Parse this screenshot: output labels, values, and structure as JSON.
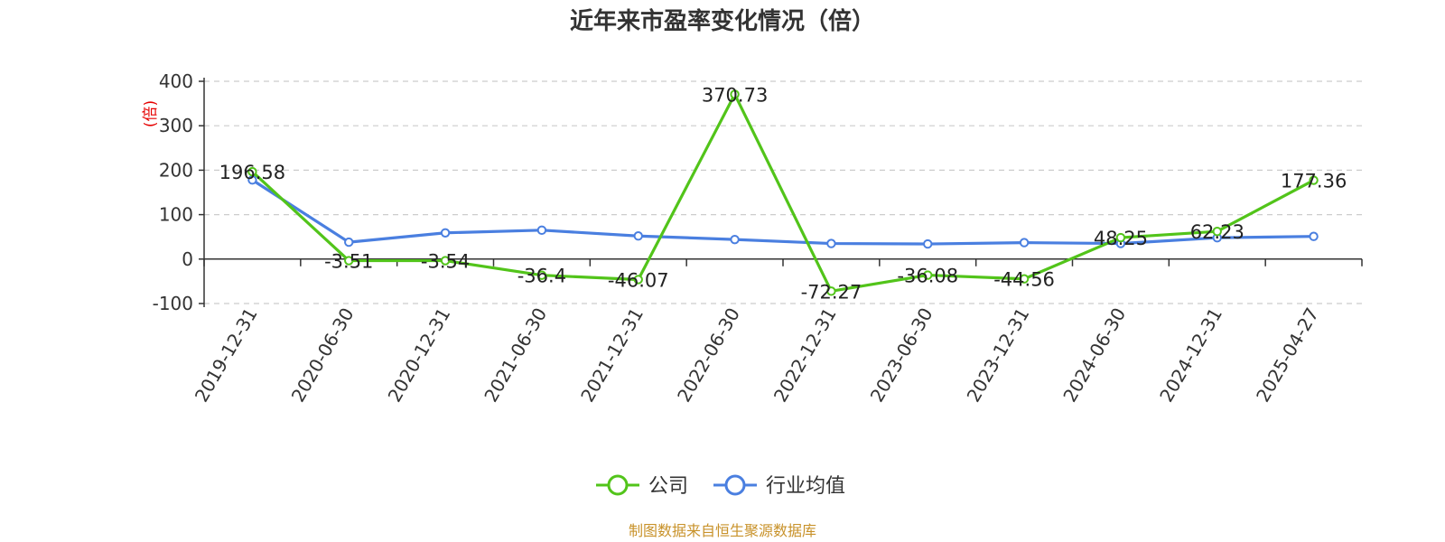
{
  "colors": {
    "company": "#52c41a",
    "industry": "#4a7fe0",
    "unit": "#e60000",
    "source": "#c8922a",
    "grid": "#cccccc",
    "axis": "#333333"
  },
  "chart_data": {
    "type": "line",
    "title": "近年来市盈率变化情况（倍）",
    "ylabel": "(倍)",
    "xlabel": "",
    "categories": [
      "2019-12-31",
      "2020-06-30",
      "2020-12-31",
      "2021-06-30",
      "2021-12-31",
      "2022-06-30",
      "2022-12-31",
      "2023-06-30",
      "2023-12-31",
      "2024-06-30",
      "2024-12-31",
      "2025-04-27"
    ],
    "ylim": [
      -100,
      400
    ],
    "yticks": [
      400,
      300,
      200,
      100,
      0,
      -100
    ],
    "grid": true,
    "legend_position": "bottom",
    "series": [
      {
        "name": "公司",
        "values": [
          196.58,
          -3.51,
          -3.54,
          -36.4,
          -46.07,
          370.73,
          -72.27,
          -36.08,
          -44.56,
          48.25,
          62.23,
          177.36
        ],
        "labels": [
          "196.58",
          "-3.51",
          "-3.54",
          "-36.4",
          "-46.07",
          "370.73",
          "-72.27",
          "-36.08",
          "-44.56",
          "48.25",
          "62.23",
          "177.36"
        ]
      },
      {
        "name": "行业均值",
        "values": [
          178,
          38,
          59,
          65,
          52,
          44,
          35,
          34,
          37,
          35,
          48,
          51
        ]
      }
    ]
  },
  "source": "制图数据来自恒生聚源数据库"
}
